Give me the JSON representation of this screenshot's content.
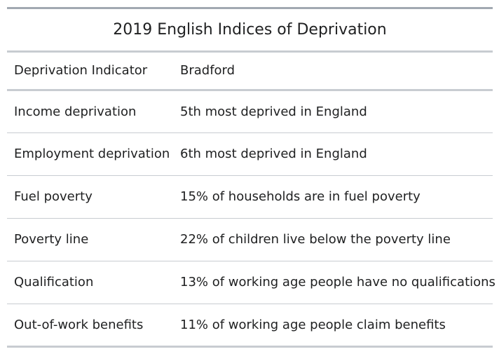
{
  "table": {
    "caption": "2019 English Indices of Deprivation",
    "headers": [
      "Deprivation Indicator",
      "Bradford"
    ],
    "rows": [
      [
        "Income deprivation",
        "5th most deprived in England"
      ],
      [
        "Employment deprivation",
        "6th most deprived in England"
      ],
      [
        "Fuel poverty",
        "15% of households are in fuel poverty"
      ],
      [
        "Poverty line",
        "22% of children live below the poverty line"
      ],
      [
        "Qualification",
        "13% of working age people have no qualifications"
      ],
      [
        "Out-of-work benefits",
        "11% of working age people claim benefits"
      ]
    ]
  }
}
